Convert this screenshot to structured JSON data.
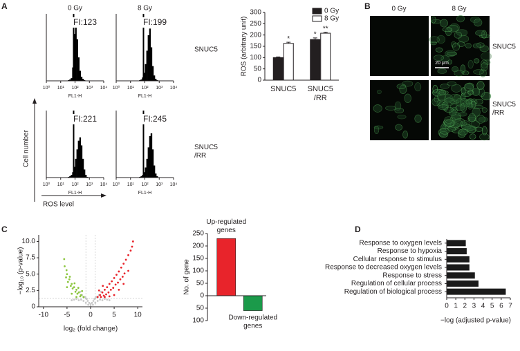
{
  "panels": [
    "A",
    "B",
    "C",
    "D"
  ],
  "panel_a": {
    "rows": [
      "SNUC5",
      "SNUC5\n/RR"
    ],
    "ylabel": "Cell number",
    "xlabel": "ROS level"
  },
  "panel_b": {
    "columns": [
      "0 Gy",
      "8 Gy"
    ],
    "rows": [
      "SNUC5",
      "SNUC5\n/RR"
    ],
    "scale_bar": "20 μm"
  },
  "chart_data": [
    {
      "type": "histogram",
      "title": "0 Gy",
      "annotation": "FI:123",
      "xlabel": "FL1-H",
      "xscale": "log",
      "xlim": [
        1,
        10000
      ],
      "xticks": [
        {
          "value": 1,
          "label": "10⁰"
        },
        {
          "value": 10,
          "label": "10¹"
        },
        {
          "value": 100,
          "label": "10²"
        },
        {
          "value": 1000,
          "label": "10³"
        },
        {
          "value": 10000,
          "label": "10⁴"
        }
      ],
      "ylim": [
        0,
        100
      ],
      "bins": [
        10,
        12.6,
        15.8,
        20,
        25.1,
        31.6,
        39.8,
        50.1,
        63.1,
        79.4,
        100,
        126,
        158,
        200,
        251,
        316,
        398,
        501,
        631,
        794,
        1000
      ],
      "values": [
        0,
        0,
        0,
        0,
        0,
        1,
        2,
        4,
        20,
        70,
        90,
        62,
        35,
        15,
        6,
        3,
        1,
        0,
        0,
        0
      ],
      "gate": 80,
      "color": "#000000"
    },
    {
      "type": "histogram",
      "title": "8 Gy",
      "annotation": "FI:199",
      "xlabel": "FL1-H",
      "xscale": "log",
      "xlim": [
        1,
        10000
      ],
      "xticks": [
        {
          "value": 1,
          "label": "10⁰"
        },
        {
          "value": 10,
          "label": "10¹"
        },
        {
          "value": 100,
          "label": "10²"
        },
        {
          "value": 1000,
          "label": "10³"
        },
        {
          "value": 10000,
          "label": "10⁴"
        }
      ],
      "ylim": [
        0,
        100
      ],
      "bins": [
        10,
        12.6,
        15.8,
        20,
        25.1,
        31.6,
        39.8,
        50.1,
        63.1,
        79.4,
        100,
        126,
        158,
        200,
        251,
        316,
        398,
        501,
        631,
        794,
        1000
      ],
      "values": [
        0,
        0,
        0,
        0,
        0,
        0,
        1,
        2,
        5,
        12,
        25,
        45,
        68,
        78,
        50,
        22,
        8,
        3,
        1,
        0
      ],
      "gate": 80,
      "color": "#000000"
    },
    {
      "type": "histogram",
      "annotation": "FI:221",
      "xlabel": "FL1-H",
      "xscale": "log",
      "xlim": [
        1,
        10000
      ],
      "xticks": [
        {
          "value": 1,
          "label": "10⁰"
        },
        {
          "value": 10,
          "label": "10¹"
        },
        {
          "value": 100,
          "label": "10²"
        },
        {
          "value": 1000,
          "label": "10³"
        },
        {
          "value": 10000,
          "label": "10⁴"
        }
      ],
      "ylim": [
        0,
        100
      ],
      "bins": [
        10,
        12.6,
        15.8,
        20,
        25.1,
        31.6,
        39.8,
        50.1,
        63.1,
        79.4,
        100,
        126,
        158,
        200,
        251,
        316,
        398,
        501,
        631,
        794,
        1000
      ],
      "values": [
        0,
        0,
        0,
        0,
        0,
        1,
        2,
        4,
        8,
        16,
        28,
        42,
        55,
        60,
        48,
        28,
        12,
        4,
        1,
        0
      ],
      "gate": 80,
      "color": "#000000"
    },
    {
      "type": "histogram",
      "annotation": "FI:245",
      "xlabel": "FL1-H",
      "xscale": "log",
      "xlim": [
        1,
        10000
      ],
      "xticks": [
        {
          "value": 1,
          "label": "10⁰"
        },
        {
          "value": 10,
          "label": "10¹"
        },
        {
          "value": 100,
          "label": "10²"
        },
        {
          "value": 1000,
          "label": "10³"
        },
        {
          "value": 10000,
          "label": "10⁴"
        }
      ],
      "ylim": [
        0,
        100
      ],
      "bins": [
        10,
        12.6,
        15.8,
        20,
        25.1,
        31.6,
        39.8,
        50.1,
        63.1,
        79.4,
        100,
        126,
        158,
        200,
        251,
        316,
        398,
        501,
        631,
        794,
        1000
      ],
      "values": [
        0,
        0,
        0,
        0,
        0,
        0,
        1,
        2,
        4,
        8,
        15,
        28,
        45,
        62,
        66,
        42,
        18,
        6,
        2,
        0
      ],
      "gate": 80,
      "color": "#000000"
    },
    {
      "type": "bar",
      "ylabel": "ROS (arbitrary unit)",
      "categories": [
        "SNUC5",
        "SNUC5\n/RR"
      ],
      "series": [
        {
          "name": "0 Gy",
          "color": "#231f20",
          "values": [
            100,
            180
          ],
          "errors": [
            3,
            7
          ],
          "significance": [
            null,
            "*"
          ]
        },
        {
          "name": "8 Gy",
          "color": "#ffffff",
          "values": [
            163,
            208
          ],
          "errors": [
            5,
            4
          ],
          "significance": [
            "*",
            "**"
          ]
        }
      ],
      "ylim": [
        0,
        300
      ],
      "yticks": [
        0,
        50,
        100,
        150,
        200,
        250,
        300
      ],
      "legend": "upper right"
    },
    {
      "type": "scatter",
      "xlabel": "log₂ (fold change)",
      "ylabel": "−log₁₀ (p-value)",
      "xlim": [
        -11,
        11
      ],
      "xticks": [
        -10,
        -5,
        0,
        5,
        10
      ],
      "ylim": [
        0,
        11
      ],
      "yticks": [
        0,
        2.5,
        {
          "value": 5,
          "label": "5.0"
        },
        7.5,
        {
          "value": 10,
          "label": "10.0"
        }
      ],
      "thresholds": {
        "x": [
          -1,
          1
        ],
        "y": 1.3
      },
      "series": [
        {
          "color": "#c8c8c8",
          "x": [
            -3,
            -2.5,
            -2,
            -1.5,
            -1,
            -0.5,
            0,
            0.5,
            1,
            1.5,
            2,
            2.5,
            3,
            -1.8,
            -1.2,
            -0.8,
            -0.3,
            0.3,
            0.8,
            1.2,
            1.8,
            -2.2,
            2.2,
            -0.6,
            0.6,
            0,
            -1,
            1,
            -4,
            -3.5,
            3.5,
            4
          ],
          "y": [
            1.2,
            1.0,
            1.1,
            0.9,
            0.6,
            0.3,
            0.1,
            0.3,
            0.6,
            0.9,
            1.1,
            1.0,
            1.2,
            1.8,
            1.5,
            1.2,
            0.6,
            0.6,
            1.2,
            1.5,
            1.8,
            2.3,
            2.3,
            0.9,
            0.9,
            0.4,
            1.3,
            1.3,
            1.0,
            1.1,
            1.1,
            1.0
          ]
        },
        {
          "color": "#8cc63f",
          "x": [
            -1.5,
            -2,
            -2.5,
            -3,
            -3.5,
            -4,
            -4.5,
            -5,
            -5.5,
            -2.2,
            -2.8,
            -3.2,
            -3.8,
            -4.2,
            -4.8,
            -5.2,
            -1.8,
            -2.6,
            -3.4,
            -4.4,
            -5.1,
            -5.6,
            -3,
            -4,
            -5
          ],
          "y": [
            1.5,
            1.8,
            2.2,
            2.6,
            3.0,
            3.5,
            4.2,
            5.0,
            6.2,
            1.6,
            2.0,
            2.3,
            2.8,
            3.2,
            3.8,
            4.5,
            2.4,
            2.9,
            3.6,
            4.6,
            5.6,
            7.3,
            1.5,
            2.0,
            3.0
          ]
        },
        {
          "color": "#e8242b",
          "x": [
            1.5,
            2,
            2.5,
            3,
            3.5,
            4,
            4.5,
            5,
            5.5,
            6,
            6.5,
            7,
            7.5,
            8,
            8.5,
            9,
            2.2,
            2.8,
            3.3,
            3.8,
            4.3,
            4.8,
            5.3,
            5.8,
            6.3,
            6.8,
            7.2,
            3,
            4,
            5,
            6,
            7,
            8,
            1.8,
            2.6,
            8.8
          ],
          "y": [
            1.5,
            1.8,
            2.2,
            2.6,
            3.0,
            3.5,
            3.9,
            4.4,
            4.9,
            5.4,
            6.0,
            6.6,
            7.2,
            7.9,
            8.6,
            10.0,
            1.5,
            1.7,
            1.9,
            2.2,
            2.6,
            2.9,
            3.4,
            3.7,
            4.2,
            4.6,
            5.1,
            1.5,
            1.6,
            1.8,
            2.6,
            3.5,
            5.5,
            2.5,
            3.2,
            9.2
          ]
        }
      ]
    },
    {
      "type": "bar",
      "ylabel": "No. of gene",
      "categories": [
        "Up-regulated\ngenes",
        "Down-regulated\ngenes"
      ],
      "values": [
        230,
        -60
      ],
      "colors": [
        "#e8242b",
        "#1b9a4a"
      ],
      "ylim": [
        -100,
        250
      ],
      "yticks": [
        {
          "value": -100,
          "label": "100"
        },
        {
          "value": -50,
          "label": "50"
        },
        0,
        50,
        100,
        150,
        200,
        250
      ]
    },
    {
      "type": "barh",
      "xlabel": "−log (adjusted p-value)",
      "categories": [
        "Response to oxygen levels",
        "Response to hypoxia",
        "Cellular response to stimulus",
        "Response to decreased oxygen levels",
        "Response to stress",
        "Regulation of cellular process",
        "Regulation of biological process"
      ],
      "values": [
        2.1,
        2.2,
        2.5,
        2.5,
        3.1,
        3.5,
        6.5
      ],
      "color": "#1a1a1a",
      "xlim": [
        0,
        7
      ],
      "xticks": [
        0,
        1,
        2,
        3,
        4,
        5,
        6,
        7
      ]
    }
  ]
}
